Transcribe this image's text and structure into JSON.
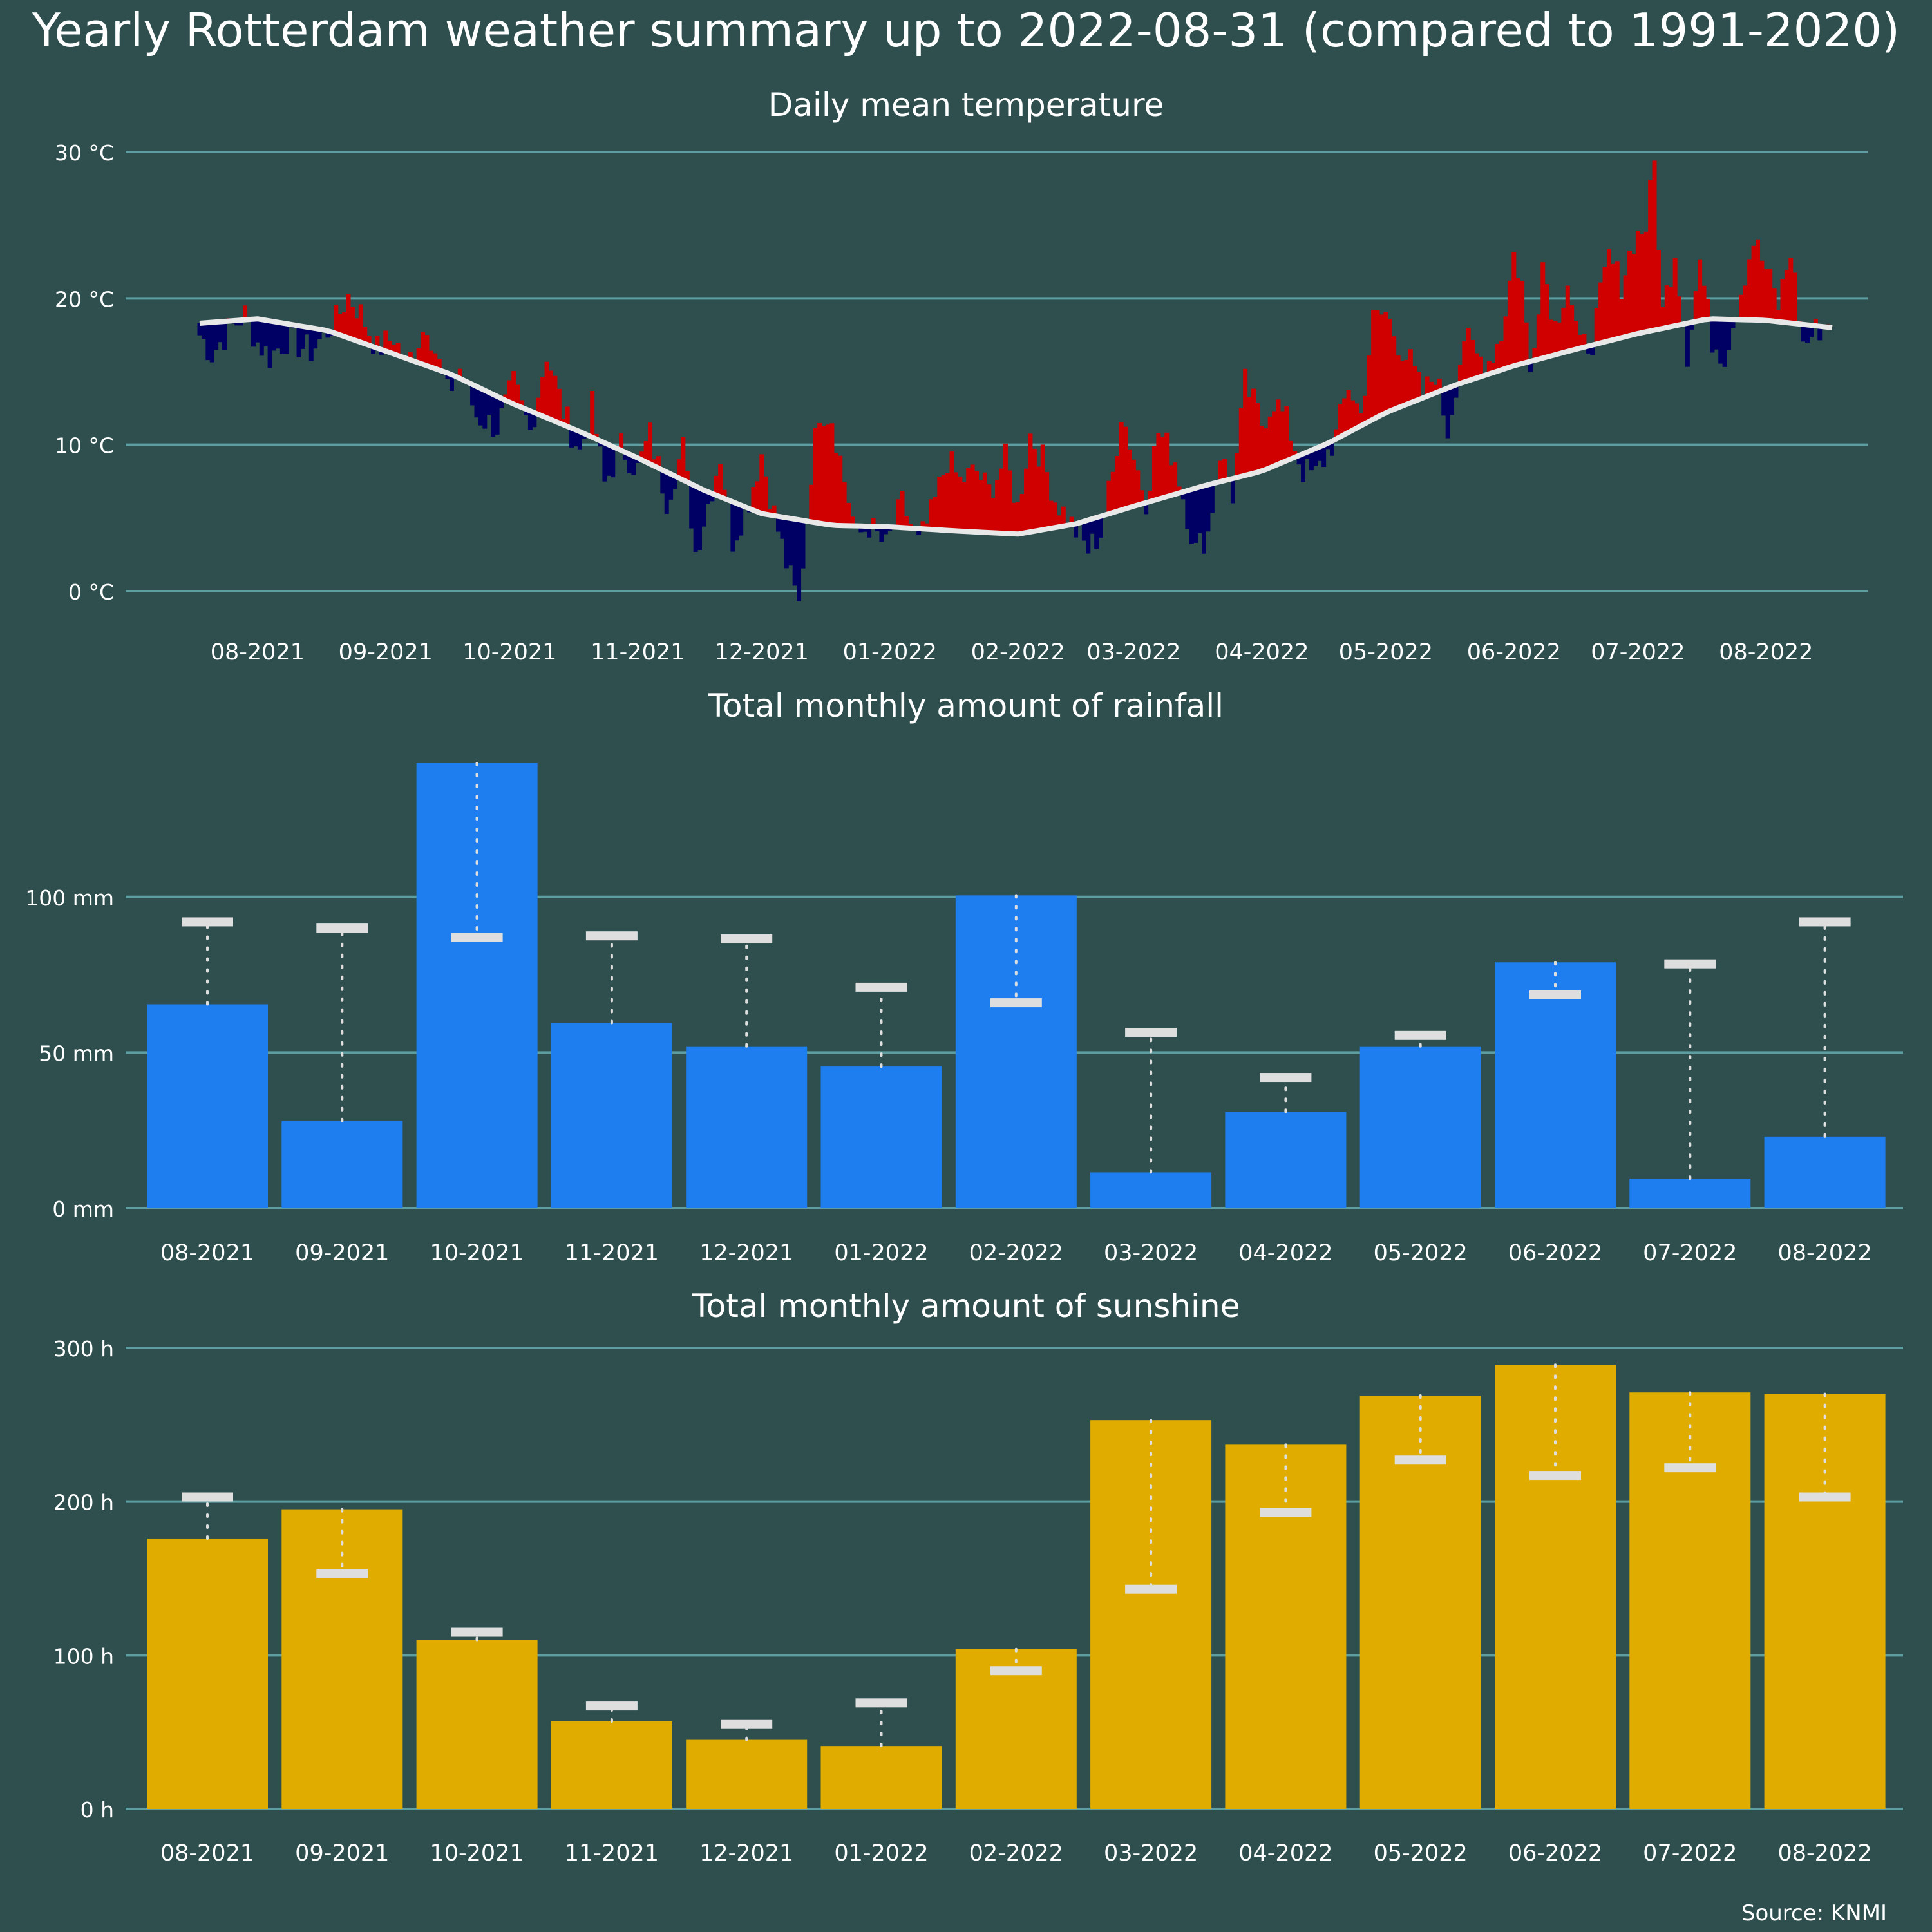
{
  "title": "Yearly Rotterdam weather summary up to 2022-08-31 (compared to 1991-2020)",
  "source": "Source: KNMI",
  "colors": {
    "background": "#2f4f4f",
    "grid": "#5f9ea0",
    "text": "#ffffff",
    "above_normal": "#d00000",
    "below_normal": "#000064",
    "normal_line": "#e8e8e8",
    "rain_bar": "#1e7ef0",
    "sun_bar": "#e0ac00",
    "normal_marker": "#dedede"
  },
  "chart_data": [
    {
      "id": "temperature",
      "type": "bar",
      "title": "Daily mean temperature",
      "unit": "°C",
      "ylim": [
        -1.5,
        31
      ],
      "yticks": [
        0,
        10,
        20,
        30
      ],
      "ytick_labels": [
        "0 °C",
        "10 °C",
        "20 °C",
        "30 °C"
      ],
      "xticks": [
        "08-2021",
        "09-2021",
        "10-2021",
        "11-2021",
        "12-2021",
        "01-2022",
        "02-2022",
        "03-2022",
        "04-2022",
        "05-2022",
        "06-2022",
        "07-2022",
        "08-2022"
      ],
      "xtick_dates": [
        "2021-08-15",
        "2021-09-15",
        "2021-10-15",
        "2021-11-15",
        "2021-12-15",
        "2022-01-15",
        "2022-02-15",
        "2022-03-15",
        "2022-04-15",
        "2022-05-15",
        "2022-06-15",
        "2022-07-15",
        "2022-08-15"
      ],
      "date_start": "2021-08-01",
      "date_end": "2022-08-31",
      "grid": true,
      "normal_series": [
        {
          "date": "2021-08-01",
          "value": 18.3
        },
        {
          "date": "2021-08-15",
          "value": 18.6
        },
        {
          "date": "2021-09-01",
          "value": 17.8
        },
        {
          "date": "2021-09-15",
          "value": 16.4
        },
        {
          "date": "2021-10-01",
          "value": 14.8
        },
        {
          "date": "2021-10-15",
          "value": 12.9
        },
        {
          "date": "2021-11-01",
          "value": 10.9
        },
        {
          "date": "2021-11-15",
          "value": 9.1
        },
        {
          "date": "2021-12-01",
          "value": 6.9
        },
        {
          "date": "2021-12-15",
          "value": 5.3
        },
        {
          "date": "2022-01-01",
          "value": 4.5
        },
        {
          "date": "2022-01-15",
          "value": 4.4
        },
        {
          "date": "2022-02-01",
          "value": 4.1
        },
        {
          "date": "2022-02-15",
          "value": 3.9
        },
        {
          "date": "2022-03-01",
          "value": 4.6
        },
        {
          "date": "2022-03-15",
          "value": 5.8
        },
        {
          "date": "2022-04-01",
          "value": 7.2
        },
        {
          "date": "2022-04-15",
          "value": 8.2
        },
        {
          "date": "2022-05-01",
          "value": 10.1
        },
        {
          "date": "2022-05-15",
          "value": 12.2
        },
        {
          "date": "2022-06-01",
          "value": 14.1
        },
        {
          "date": "2022-06-15",
          "value": 15.4
        },
        {
          "date": "2022-07-01",
          "value": 16.6
        },
        {
          "date": "2022-07-15",
          "value": 17.6
        },
        {
          "date": "2022-08-01",
          "value": 18.6
        },
        {
          "date": "2022-08-15",
          "value": 18.5
        },
        {
          "date": "2022-08-31",
          "value": 18.0
        }
      ],
      "daily_key_points": [
        {
          "date": "2021-08-01",
          "value": 17.5
        },
        {
          "date": "2021-08-04",
          "value": 16.2
        },
        {
          "date": "2021-08-08",
          "value": 17.8
        },
        {
          "date": "2021-08-12",
          "value": 18.9
        },
        {
          "date": "2021-08-15",
          "value": 17.0
        },
        {
          "date": "2021-08-18",
          "value": 16.0
        },
        {
          "date": "2021-08-22",
          "value": 17.2
        },
        {
          "date": "2021-08-28",
          "value": 16.4
        },
        {
          "date": "2021-09-03",
          "value": 18.5
        },
        {
          "date": "2021-09-06",
          "value": 20.2
        },
        {
          "date": "2021-09-09",
          "value": 19.0
        },
        {
          "date": "2021-09-13",
          "value": 16.5
        },
        {
          "date": "2021-09-17",
          "value": 17.4
        },
        {
          "date": "2021-09-20",
          "value": 15.4
        },
        {
          "date": "2021-09-25",
          "value": 18.4
        },
        {
          "date": "2021-09-30",
          "value": 13.5
        },
        {
          "date": "2021-10-03",
          "value": 15.2
        },
        {
          "date": "2021-10-07",
          "value": 12.0
        },
        {
          "date": "2021-10-12",
          "value": 11.2
        },
        {
          "date": "2021-10-16",
          "value": 14.1
        },
        {
          "date": "2021-10-20",
          "value": 10.9
        },
        {
          "date": "2021-10-24",
          "value": 16.3
        },
        {
          "date": "2021-10-28",
          "value": 12.3
        },
        {
          "date": "2021-11-01",
          "value": 9.5
        },
        {
          "date": "2021-11-04",
          "value": 12.6
        },
        {
          "date": "2021-11-07",
          "value": 7.3
        },
        {
          "date": "2021-11-11",
          "value": 9.9
        },
        {
          "date": "2021-11-15",
          "value": 8.3
        },
        {
          "date": "2021-11-18",
          "value": 10.7
        },
        {
          "date": "2021-11-22",
          "value": 6.3
        },
        {
          "date": "2021-11-26",
          "value": 9.8
        },
        {
          "date": "2021-11-29",
          "value": 2.7
        },
        {
          "date": "2021-12-02",
          "value": 6.0
        },
        {
          "date": "2021-12-05",
          "value": 9.3
        },
        {
          "date": "2021-12-08",
          "value": 3.5
        },
        {
          "date": "2021-12-12",
          "value": 6.3
        },
        {
          "date": "2021-12-15",
          "value": 9.4
        },
        {
          "date": "2021-12-18",
          "value": 5.3
        },
        {
          "date": "2021-12-22",
          "value": 0.8
        },
        {
          "date": "2021-12-24",
          "value": -1.0
        },
        {
          "date": "2021-12-27",
          "value": 8.2
        },
        {
          "date": "2021-12-29",
          "value": 12.4
        },
        {
          "date": "2022-01-01",
          "value": 11.9
        },
        {
          "date": "2022-01-04",
          "value": 7.6
        },
        {
          "date": "2022-01-07",
          "value": 3.7
        },
        {
          "date": "2022-01-10",
          "value": 4.5
        },
        {
          "date": "2022-01-14",
          "value": 3.0
        },
        {
          "date": "2022-01-18",
          "value": 6.0
        },
        {
          "date": "2022-01-22",
          "value": 3.2
        },
        {
          "date": "2022-01-25",
          "value": 5.2
        },
        {
          "date": "2022-01-29",
          "value": 9.0
        },
        {
          "date": "2022-02-01",
          "value": 7.5
        },
        {
          "date": "2022-02-05",
          "value": 8.2
        },
        {
          "date": "2022-02-08",
          "value": 6.8
        },
        {
          "date": "2022-02-12",
          "value": 9.0
        },
        {
          "date": "2022-02-15",
          "value": 5.7
        },
        {
          "date": "2022-02-18",
          "value": 10.7
        },
        {
          "date": "2022-02-21",
          "value": 9.0
        },
        {
          "date": "2022-02-24",
          "value": 6.3
        },
        {
          "date": "2022-02-27",
          "value": 5.0
        },
        {
          "date": "2022-03-01",
          "value": 4.1
        },
        {
          "date": "2022-03-04",
          "value": 2.8
        },
        {
          "date": "2022-03-07",
          "value": 4.0
        },
        {
          "date": "2022-03-10",
          "value": 8.0
        },
        {
          "date": "2022-03-12",
          "value": 12.3
        },
        {
          "date": "2022-03-15",
          "value": 9.2
        },
        {
          "date": "2022-03-18",
          "value": 6.3
        },
        {
          "date": "2022-03-21",
          "value": 10.9
        },
        {
          "date": "2022-03-25",
          "value": 9.0
        },
        {
          "date": "2022-03-30",
          "value": 2.8
        },
        {
          "date": "2022-04-02",
          "value": 4.0
        },
        {
          "date": "2022-04-05",
          "value": 9.5
        },
        {
          "date": "2022-04-08",
          "value": 6.6
        },
        {
          "date": "2022-04-11",
          "value": 14.2
        },
        {
          "date": "2022-04-15",
          "value": 11.5
        },
        {
          "date": "2022-04-18",
          "value": 13.1
        },
        {
          "date": "2022-04-21",
          "value": 11.6
        },
        {
          "date": "2022-04-25",
          "value": 8.2
        },
        {
          "date": "2022-04-28",
          "value": 7.9
        },
        {
          "date": "2022-05-03",
          "value": 10.6
        },
        {
          "date": "2022-05-06",
          "value": 14.1
        },
        {
          "date": "2022-05-09",
          "value": 12.0
        },
        {
          "date": "2022-05-12",
          "value": 18.5
        },
        {
          "date": "2022-05-15",
          "value": 19.0
        },
        {
          "date": "2022-05-18",
          "value": 17.0
        },
        {
          "date": "2022-05-21",
          "value": 15.6
        },
        {
          "date": "2022-05-24",
          "value": 13.3
        },
        {
          "date": "2022-05-27",
          "value": 15.0
        },
        {
          "date": "2022-05-30",
          "value": 11.0
        },
        {
          "date": "2022-06-03",
          "value": 17.4
        },
        {
          "date": "2022-06-06",
          "value": 16.0
        },
        {
          "date": "2022-06-09",
          "value": 15.8
        },
        {
          "date": "2022-06-12",
          "value": 17.5
        },
        {
          "date": "2022-06-15",
          "value": 23.0
        },
        {
          "date": "2022-06-17",
          "value": 21.0
        },
        {
          "date": "2022-06-19",
          "value": 15.0
        },
        {
          "date": "2022-06-22",
          "value": 22.5
        },
        {
          "date": "2022-06-25",
          "value": 18.2
        },
        {
          "date": "2022-06-28",
          "value": 21.3
        },
        {
          "date": "2022-07-01",
          "value": 16.5
        },
        {
          "date": "2022-07-04",
          "value": 17.2
        },
        {
          "date": "2022-07-08",
          "value": 22.8
        },
        {
          "date": "2022-07-11",
          "value": 21.0
        },
        {
          "date": "2022-07-14",
          "value": 24.0
        },
        {
          "date": "2022-07-17",
          "value": 25.0
        },
        {
          "date": "2022-07-19",
          "value": 29.2
        },
        {
          "date": "2022-07-21",
          "value": 19.0
        },
        {
          "date": "2022-07-24",
          "value": 23.3
        },
        {
          "date": "2022-07-27",
          "value": 16.3
        },
        {
          "date": "2022-07-30",
          "value": 22.6
        },
        {
          "date": "2022-08-02",
          "value": 17.2
        },
        {
          "date": "2022-08-05",
          "value": 16.1
        },
        {
          "date": "2022-08-08",
          "value": 19.5
        },
        {
          "date": "2022-08-12",
          "value": 24.0
        },
        {
          "date": "2022-08-15",
          "value": 22.0
        },
        {
          "date": "2022-08-18",
          "value": 19.5
        },
        {
          "date": "2022-08-21",
          "value": 23.3
        },
        {
          "date": "2022-08-24",
          "value": 16.8
        },
        {
          "date": "2022-08-27",
          "value": 17.8
        },
        {
          "date": "2022-08-31",
          "value": 18.6
        }
      ]
    },
    {
      "id": "rainfall",
      "type": "bar",
      "title": "Total monthly amount of rainfall",
      "unit": "mm",
      "ylim": [
        0,
        143
      ],
      "yticks": [
        0,
        50,
        100
      ],
      "ytick_labels": [
        "0 mm",
        "50 mm",
        "100 mm"
      ],
      "categories": [
        "08-2021",
        "09-2021",
        "10-2021",
        "11-2021",
        "12-2021",
        "01-2022",
        "02-2022",
        "03-2022",
        "04-2022",
        "05-2022",
        "06-2022",
        "07-2022",
        "08-2022"
      ],
      "values": [
        65.5,
        28,
        143,
        59.5,
        52,
        45.5,
        100.5,
        11.5,
        31,
        52,
        79,
        9.5,
        23
      ],
      "normals": [
        92,
        90,
        87,
        87.5,
        86.5,
        71,
        66,
        56.5,
        42,
        55.5,
        68.5,
        78.5,
        92
      ],
      "grid": true
    },
    {
      "id": "sunshine",
      "type": "bar",
      "title": "Total monthly amount of sunshine",
      "unit": "h",
      "ylim": [
        0,
        300
      ],
      "yticks": [
        0,
        100,
        200,
        300
      ],
      "ytick_labels": [
        "0 h",
        "100 h",
        "200 h",
        "300 h"
      ],
      "categories": [
        "08-2021",
        "09-2021",
        "10-2021",
        "11-2021",
        "12-2021",
        "01-2022",
        "02-2022",
        "03-2022",
        "04-2022",
        "05-2022",
        "06-2022",
        "07-2022",
        "08-2022"
      ],
      "values": [
        176,
        195,
        110,
        57,
        45,
        41,
        104,
        253,
        237,
        269,
        289,
        271,
        270
      ],
      "normals": [
        203,
        153,
        115,
        67,
        55,
        69,
        90,
        143,
        193,
        227,
        217,
        222,
        203
      ],
      "grid": true
    }
  ]
}
